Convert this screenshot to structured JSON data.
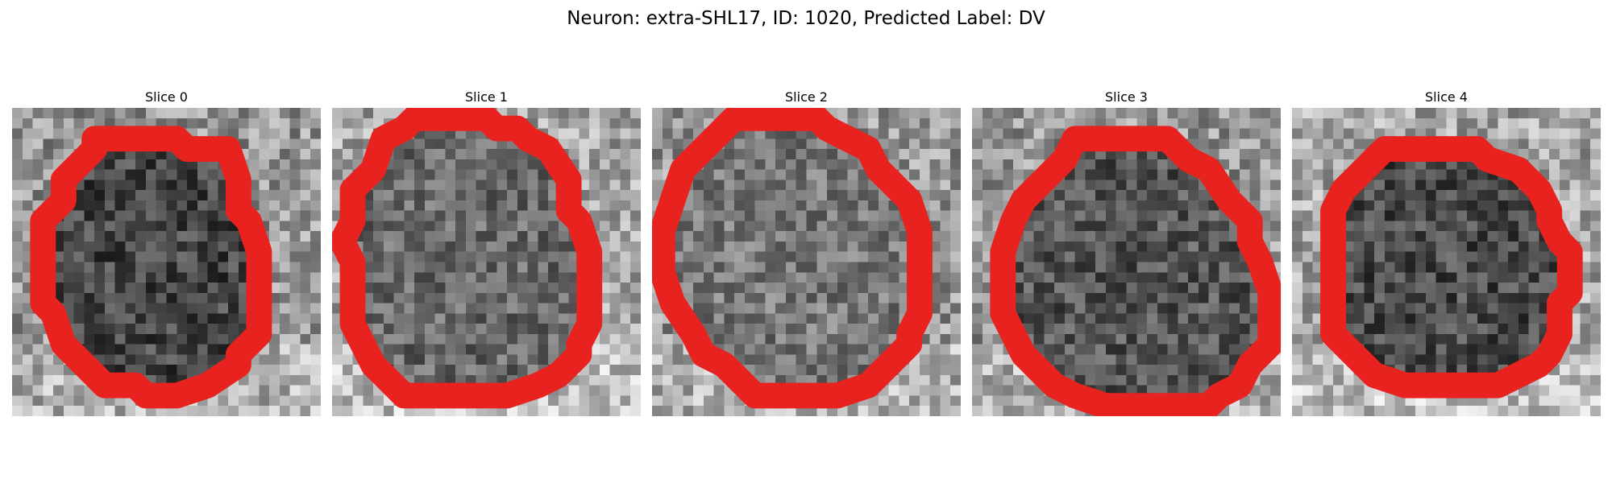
{
  "figure": {
    "title": "Neuron: extra-SHL17, ID: 1020, Predicted Label: DV"
  },
  "slices": [
    {
      "title": "Slice 0",
      "contour_color": "#e8231f"
    },
    {
      "title": "Slice 1",
      "contour_color": "#e8231f"
    },
    {
      "title": "Slice 2",
      "contour_color": "#e8231f"
    },
    {
      "title": "Slice 3",
      "contour_color": "#e8231f"
    },
    {
      "title": "Slice 4",
      "contour_color": "#e8231f"
    }
  ],
  "colormap": "gray"
}
